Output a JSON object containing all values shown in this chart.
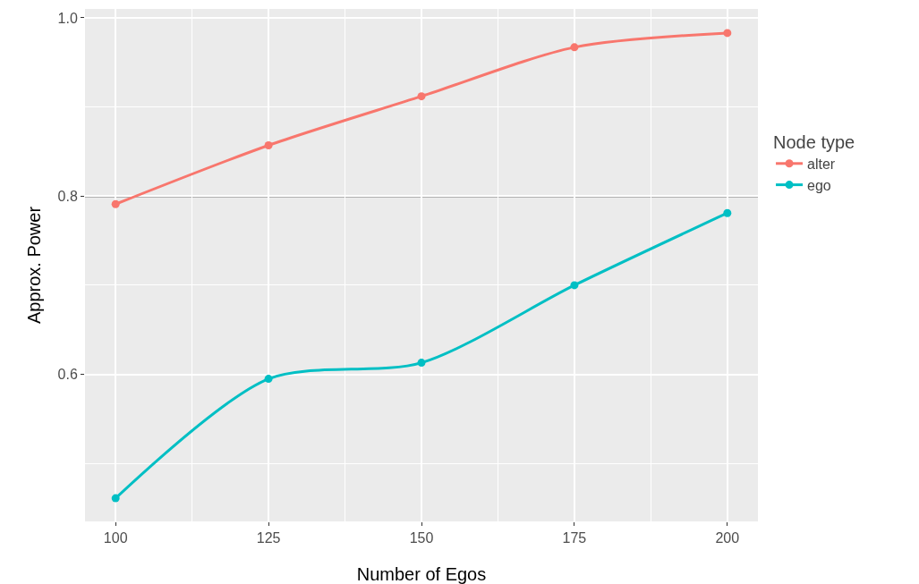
{
  "chart_data": {
    "type": "line",
    "xlabel": "Number of Egos",
    "ylabel": "Approx. Power",
    "legend_title": "Node type",
    "x": [
      100,
      125,
      150,
      175,
      200
    ],
    "series": [
      {
        "name": "alter",
        "color": "#f8766d",
        "values": [
          0.791,
          0.857,
          0.912,
          0.967,
          0.983
        ]
      },
      {
        "name": "ego",
        "color": "#00bfc4",
        "values": [
          0.461,
          0.595,
          0.613,
          0.7,
          0.781
        ]
      }
    ],
    "xlim": [
      95,
      205
    ],
    "xticks": [
      100,
      125,
      150,
      175,
      200
    ],
    "ylim": [
      0.435,
      1.01
    ],
    "yticks": [
      0.6,
      0.8,
      {
        "value": 1.0,
        "label": "1.0"
      }
    ],
    "ref_lines": [
      {
        "axis": "y",
        "value": 0.8,
        "color": "#000000"
      }
    ],
    "grid": true,
    "legend": "right",
    "marker": "circle",
    "line_style": "solid"
  }
}
